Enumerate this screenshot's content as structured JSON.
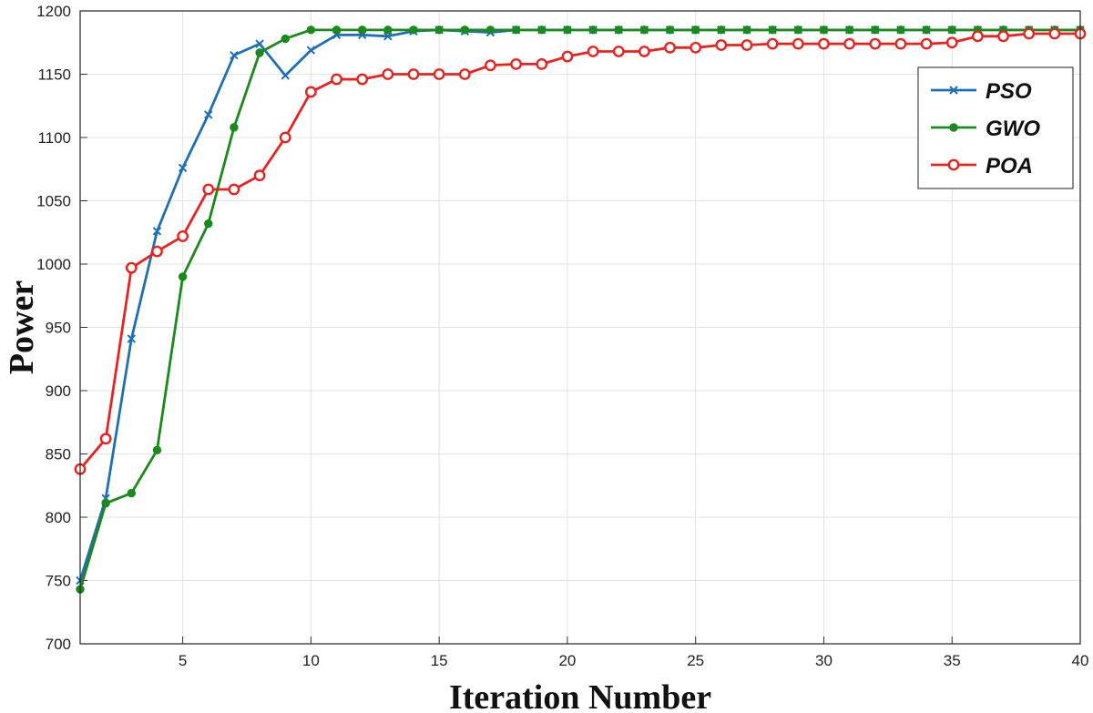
{
  "chart_data": {
    "type": "line",
    "title": "",
    "xlabel": "Iteration Number",
    "ylabel": "Power",
    "xlim": [
      1,
      40
    ],
    "ylim": [
      700,
      1200
    ],
    "xticks": [
      5,
      10,
      15,
      20,
      25,
      30,
      35,
      40
    ],
    "yticks": [
      700,
      750,
      800,
      850,
      900,
      950,
      1000,
      1050,
      1100,
      1150,
      1200
    ],
    "grid": true,
    "legend_position": "top-right",
    "x": [
      1,
      2,
      3,
      4,
      5,
      6,
      7,
      8,
      9,
      10,
      11,
      12,
      13,
      14,
      15,
      16,
      17,
      18,
      19,
      20,
      21,
      22,
      23,
      24,
      25,
      26,
      27,
      28,
      29,
      30,
      31,
      32,
      33,
      34,
      35,
      36,
      37,
      38,
      39,
      40
    ],
    "series": [
      {
        "name": "PSO",
        "color": "#1f6fb4",
        "marker": "x",
        "values": [
          750,
          815,
          941,
          1026,
          1076,
          1118,
          1165,
          1174,
          1149,
          1169,
          1181,
          1181,
          1180,
          1184,
          1185,
          1184,
          1183,
          1185,
          1185,
          1185,
          1185,
          1185,
          1185,
          1185,
          1185,
          1185,
          1185,
          1185,
          1185,
          1185,
          1185,
          1185,
          1185,
          1185,
          1185,
          1185,
          1185,
          1185,
          1185,
          1185
        ]
      },
      {
        "name": "GWO",
        "color": "#1a8a1a",
        "marker": "dot",
        "values": [
          743,
          811,
          819,
          853,
          990,
          1032,
          1108,
          1167,
          1178,
          1185,
          1185,
          1185,
          1185,
          1185,
          1185,
          1185,
          1185,
          1185,
          1185,
          1185,
          1185,
          1185,
          1185,
          1185,
          1185,
          1185,
          1185,
          1185,
          1185,
          1185,
          1185,
          1185,
          1185,
          1185,
          1185,
          1185,
          1185,
          1185,
          1185,
          1185
        ]
      },
      {
        "name": "POA",
        "color": "#e8231f",
        "marker": "circle",
        "values": [
          838,
          862,
          997,
          1010,
          1022,
          1059,
          1059,
          1070,
          1100,
          1136,
          1146,
          1146,
          1150,
          1150,
          1150,
          1150,
          1157,
          1158,
          1158,
          1164,
          1168,
          1168,
          1168,
          1171,
          1171,
          1173,
          1173,
          1174,
          1174,
          1174,
          1174,
          1174,
          1174,
          1174,
          1175,
          1180,
          1180,
          1182,
          1182,
          1182
        ]
      }
    ]
  }
}
